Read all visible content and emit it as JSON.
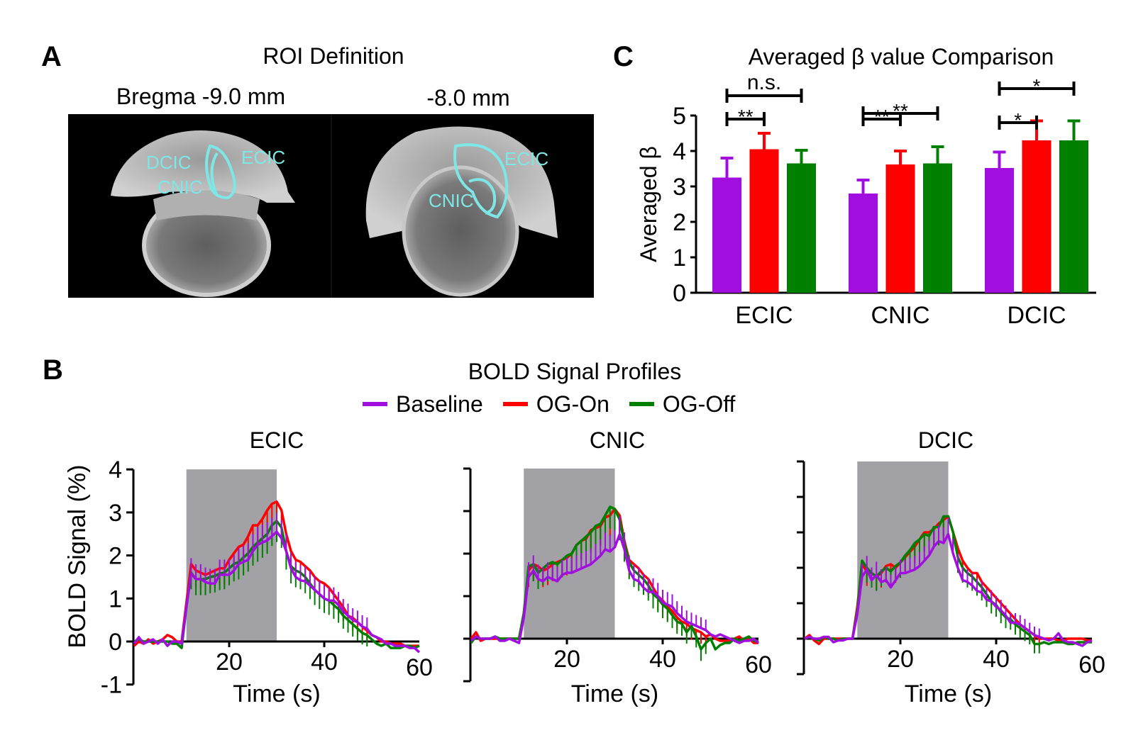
{
  "panels": {
    "a": {
      "label": "A",
      "title": "ROI Definition",
      "slices": [
        {
          "title": "Bregma -9.0 mm",
          "rois": [
            "DCIC",
            "ECIC",
            "CNIC"
          ]
        },
        {
          "title": "-8.0 mm",
          "rois": [
            "ECIC",
            "CNIC"
          ]
        }
      ],
      "roi_color": "#7fe6e6"
    },
    "b": {
      "label": "B",
      "title": "BOLD Signal Profiles"
    },
    "c": {
      "label": "C"
    }
  },
  "legend": [
    {
      "name": "Baseline",
      "color": "#a10ee0"
    },
    {
      "name": "OG-On",
      "color": "#ff0000"
    },
    {
      "name": "OG-Off",
      "color": "#008000"
    }
  ],
  "chart_data": [
    {
      "type": "bar",
      "title": "Averaged β value Comparison",
      "xlabel": "",
      "ylabel": "Averaged β",
      "ylim": [
        0,
        5
      ],
      "yticks": [
        0,
        1,
        2,
        3,
        4,
        5
      ],
      "categories": [
        "ECIC",
        "CNIC",
        "DCIC"
      ],
      "series": [
        {
          "name": "Baseline",
          "color": "#a10ee0",
          "values": [
            3.25,
            2.8,
            3.52
          ],
          "error_upper": [
            3.8,
            3.18,
            3.97
          ]
        },
        {
          "name": "OG-On",
          "color": "#ff0000",
          "values": [
            4.05,
            3.62,
            4.3
          ],
          "error_upper": [
            4.5,
            4.0,
            4.85
          ]
        },
        {
          "name": "OG-Off",
          "color": "#008000",
          "values": [
            3.65,
            3.65,
            4.3
          ],
          "error_upper": [
            4.02,
            4.12,
            4.85
          ]
        }
      ],
      "significance": [
        {
          "category": "ECIC",
          "from": "Baseline",
          "to": "OG-On",
          "label": "**"
        },
        {
          "category": "ECIC",
          "from": "Baseline",
          "to": "OG-Off",
          "label": "n.s."
        },
        {
          "category": "CNIC",
          "from": "Baseline",
          "to": "OG-On",
          "label": "**"
        },
        {
          "category": "CNIC",
          "from": "Baseline",
          "to": "OG-Off",
          "label": "**"
        },
        {
          "category": "DCIC",
          "from": "Baseline",
          "to": "OG-On",
          "label": "*"
        },
        {
          "category": "DCIC",
          "from": "Baseline",
          "to": "OG-Off",
          "label": "*"
        }
      ]
    },
    {
      "type": "line",
      "title": "ECIC",
      "xlabel": "Time (s)",
      "ylabel": "BOLD Signal (%)",
      "xlim": [
        0,
        60
      ],
      "ylim": [
        -1,
        4
      ],
      "xticks": [
        20,
        40,
        60
      ],
      "yticks": [
        -1,
        0,
        1,
        2,
        3,
        4
      ],
      "ytick_labels": true,
      "stimulus": [
        11,
        30
      ],
      "series": [
        {
          "name": "Baseline",
          "values": [
            -0.05,
            0.1,
            -0.05,
            0,
            0.05,
            -0.05,
            0.05,
            -0.1,
            0,
            0,
            -0.05,
            0.8,
            1.58,
            1.45,
            1.45,
            1.38,
            1.35,
            1.35,
            1.55,
            1.55,
            1.55,
            1.65,
            1.8,
            1.85,
            1.9,
            2.1,
            2.25,
            2.3,
            2.35,
            2.45,
            2.55,
            2.4,
            2.1,
            1.7,
            1.5,
            1.42,
            1.4,
            1.3,
            1.2,
            1.1,
            1.0,
            0.95,
            0.95,
            0.85,
            0.7,
            0.6,
            0.5,
            0.45,
            0.35,
            0.3,
            0.15,
            0.1,
            0.05,
            -0.05,
            -0.05,
            -0.1,
            -0.1,
            -0.1,
            -0.15,
            -0.15,
            -0.25
          ]
        },
        {
          "name": "OG-On",
          "values": [
            -0.1,
            0,
            -0.05,
            0.05,
            -0.05,
            0,
            0.05,
            0.15,
            0.1,
            0,
            0,
            0.9,
            1.8,
            1.65,
            1.6,
            1.55,
            1.6,
            1.65,
            1.7,
            1.7,
            1.9,
            2.05,
            2.2,
            2.25,
            2.45,
            2.7,
            2.7,
            2.85,
            3.05,
            3.2,
            3.25,
            3.05,
            2.5,
            2.1,
            1.9,
            1.85,
            1.75,
            1.65,
            1.5,
            1.4,
            1.35,
            1.25,
            1.1,
            0.95,
            0.8,
            0.6,
            0.55,
            0.45,
            0.35,
            0.25,
            0.15,
            0.1,
            0,
            0,
            -0.05,
            -0.05,
            -0.05,
            -0.1,
            -0.1,
            -0.1,
            -0.1
          ]
        },
        {
          "name": "OG-Off",
          "values": [
            0,
            0.05,
            0,
            0,
            0,
            0,
            0,
            0,
            -0.05,
            -0.05,
            -0.15,
            0.8,
            1.6,
            1.45,
            1.45,
            1.45,
            1.5,
            1.52,
            1.58,
            1.6,
            1.7,
            1.8,
            1.85,
            1.95,
            2.05,
            2.2,
            2.3,
            2.4,
            2.5,
            2.7,
            2.8,
            2.65,
            2.1,
            1.75,
            1.65,
            1.6,
            1.5,
            1.35,
            1.2,
            1.1,
            1.0,
            0.95,
            0.85,
            0.75,
            0.6,
            0.5,
            0.4,
            0.3,
            0.2,
            0.15,
            0.05,
            -0.05,
            -0.1,
            -0.05,
            -0.15,
            -0.15,
            -0.15,
            -0.1,
            -0.1,
            -0.15,
            -0.1
          ]
        }
      ]
    },
    {
      "type": "line",
      "title": "CNIC",
      "xlabel": "Time (s)",
      "ylabel": "",
      "xlim": [
        0,
        60
      ],
      "ylim": [
        -1,
        4
      ],
      "xticks": [
        20,
        40,
        60
      ],
      "yticks": [
        -1,
        0,
        1,
        2,
        3,
        4
      ],
      "ytick_labels": false,
      "stimulus": [
        11,
        30
      ],
      "series": [
        {
          "name": "Baseline",
          "values": [
            -0.05,
            0.05,
            0,
            0,
            0,
            0.05,
            -0.05,
            -0.05,
            0,
            -0.05,
            -0.1,
            0.5,
            1.45,
            1.6,
            1.4,
            1.35,
            1.45,
            1.4,
            1.35,
            1.5,
            1.55,
            1.55,
            1.6,
            1.65,
            1.7,
            1.75,
            1.85,
            1.95,
            2.1,
            2.05,
            2.15,
            2.45,
            2.1,
            1.6,
            1.4,
            1.35,
            1.2,
            1.1,
            1.1,
            1.0,
            0.85,
            0.8,
            0.75,
            0.6,
            0.5,
            0.4,
            0.35,
            0.3,
            0.25,
            0.2,
            0.1,
            0.05,
            0.1,
            0.05,
            0,
            -0.05,
            -0.1,
            -0.05,
            -0.05,
            0,
            -0.1
          ]
        },
        {
          "name": "OG-On",
          "values": [
            0,
            0.15,
            -0.05,
            0,
            0,
            0,
            0,
            0,
            0,
            0,
            0,
            0.6,
            1.6,
            1.75,
            1.7,
            1.6,
            1.65,
            1.75,
            1.8,
            1.85,
            1.9,
            2.0,
            2.2,
            2.3,
            2.35,
            2.55,
            2.6,
            2.65,
            2.85,
            2.9,
            3.05,
            2.9,
            2.3,
            1.85,
            1.75,
            1.65,
            1.5,
            1.4,
            1.2,
            1.0,
            0.9,
            0.75,
            0.65,
            0.5,
            0.4,
            0.35,
            0.25,
            0.2,
            0.15,
            0.05,
            0.1,
            0,
            -0.05,
            -0.05,
            -0.05,
            0,
            0.05,
            -0.05,
            0,
            -0.1,
            -0.1
          ]
        },
        {
          "name": "OG-Off",
          "values": [
            -0.1,
            0.05,
            0,
            0,
            0,
            0.05,
            0,
            0,
            0,
            0,
            0,
            0.6,
            1.7,
            1.75,
            1.55,
            1.65,
            1.75,
            1.8,
            1.75,
            1.85,
            1.95,
            2.0,
            2.2,
            2.3,
            2.4,
            2.5,
            2.65,
            2.7,
            2.9,
            3.1,
            3.05,
            2.8,
            2.25,
            1.8,
            1.6,
            1.5,
            1.4,
            1.25,
            1.05,
            0.95,
            0.8,
            0.7,
            0.55,
            0.4,
            0.35,
            0.15,
            0.3,
            0.05,
            -0.25,
            -0.1,
            0,
            -0.25,
            -0.15,
            -0.1,
            -0.1,
            0,
            -0.05,
            0,
            0.05,
            -0.05,
            -0.05
          ]
        }
      ]
    },
    {
      "type": "line",
      "title": "DCIC",
      "xlabel": "Time (s)",
      "ylabel": "",
      "xlim": [
        0,
        60
      ],
      "ylim": [
        -1,
        5
      ],
      "xticks": [
        20,
        40,
        60
      ],
      "yticks": [
        -1,
        0,
        1,
        2,
        3,
        4,
        5
      ],
      "ytick_labels": false,
      "stimulus": [
        11,
        30
      ],
      "series": [
        {
          "name": "Baseline",
          "values": [
            0,
            0.05,
            0,
            0,
            0.05,
            0.05,
            -0.1,
            -0.05,
            -0.05,
            0,
            0,
            0.7,
            1.75,
            1.95,
            1.65,
            1.8,
            1.6,
            1.65,
            1.45,
            1.65,
            1.85,
            1.85,
            1.9,
            1.95,
            2.05,
            2.2,
            2.35,
            2.6,
            2.75,
            2.7,
            2.95,
            2.4,
            2.0,
            1.65,
            1.6,
            1.5,
            1.35,
            1.3,
            1.1,
            1.05,
            0.9,
            0.8,
            0.65,
            0.45,
            0.45,
            0.4,
            0.3,
            0.2,
            0.1,
            0.05,
            0,
            -0.05,
            0,
            0.15,
            -0.05,
            -0.1,
            -0.1,
            -0.15,
            -0.2,
            -0.1,
            -0.05
          ]
        },
        {
          "name": "OG-On",
          "values": [
            0,
            0.1,
            -0.05,
            -0.15,
            0,
            0,
            0,
            0,
            0,
            0,
            0,
            0.9,
            2.1,
            1.9,
            1.85,
            1.75,
            1.85,
            2.05,
            2.1,
            2.0,
            2.15,
            2.3,
            2.45,
            2.6,
            2.8,
            3.0,
            3.0,
            3.1,
            3.25,
            3.35,
            3.45,
            3.0,
            2.55,
            2.2,
            2.0,
            1.85,
            1.85,
            1.6,
            1.45,
            1.3,
            1.15,
            1.0,
            0.85,
            0.7,
            0.55,
            0.4,
            0.3,
            0.2,
            0.1,
            0,
            0,
            0,
            0,
            -0.05,
            -0.05,
            0,
            0,
            0,
            0,
            -0.05,
            -0.05
          ]
        },
        {
          "name": "OG-Off",
          "values": [
            0,
            0.05,
            0,
            -0.05,
            0.05,
            0,
            0,
            -0.05,
            0,
            0,
            0,
            0.8,
            2.2,
            2.0,
            1.85,
            1.75,
            1.9,
            2.0,
            1.9,
            2.05,
            2.15,
            2.35,
            2.5,
            2.7,
            2.8,
            2.95,
            2.9,
            3.15,
            3.15,
            3.45,
            3.45,
            3.0,
            2.3,
            2.0,
            1.85,
            1.75,
            1.6,
            1.45,
            1.25,
            1.05,
            0.95,
            0.75,
            0.6,
            0.55,
            0.4,
            0.3,
            0.2,
            0.1,
            -0.15,
            -0.15,
            -0.1,
            -0.15,
            -0.1,
            -0.1,
            -0.1,
            -0.15,
            -0.15,
            -0.1,
            -0.1,
            -0.1,
            -0.1
          ]
        }
      ]
    }
  ]
}
